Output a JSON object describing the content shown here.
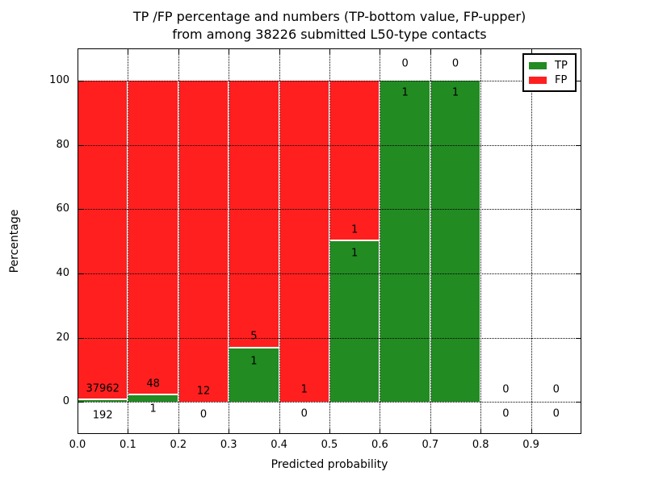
{
  "chart_data": {
    "type": "bar",
    "stacked": true,
    "units": "percent",
    "title": "TP /FP percentage and numbers (TP-bottom value, FP-upper)\nfrom among 38226 submitted L50-type contacts",
    "xlabel": "Predicted probability",
    "ylabel": "Percentage",
    "xlim": [
      0.0,
      1.0
    ],
    "ylim": [
      -10,
      110
    ],
    "xticks": [
      "0.0",
      "0.1",
      "0.2",
      "0.3",
      "0.4",
      "0.5",
      "0.6",
      "0.7",
      "0.8",
      "0.9"
    ],
    "yticks": [
      "0",
      "20",
      "40",
      "60",
      "80",
      "100"
    ],
    "grid": "dotted, drawn over bars",
    "legend_position": "upper-right",
    "total_submitted": 38226,
    "colors": {
      "tp": "#228b22",
      "fp": "#ff1f1f",
      "text": "#000000",
      "background": "#ffffff"
    },
    "legend": [
      {
        "label": "TP",
        "color_key": "tp"
      },
      {
        "label": "FP",
        "color_key": "fp"
      }
    ],
    "label_convention": "TP count below green top, FP count above green top",
    "bars": [
      {
        "bin": "0.0-0.1",
        "x0": 0.0,
        "x1": 0.1,
        "tp_count": 192,
        "fp_count": 37962,
        "tp_pct": 0.5,
        "fp_pct": 99.5,
        "fp_label_y": 4.0,
        "tp_label_y": -4.3
      },
      {
        "bin": "0.1-0.2",
        "x0": 0.1,
        "x1": 0.2,
        "tp_count": 1,
        "fp_count": 48,
        "tp_pct": 2.0,
        "fp_pct": 98.0,
        "fp_label_y": 5.5,
        "tp_label_y": -2.2
      },
      {
        "bin": "0.2-0.3",
        "x0": 0.2,
        "x1": 0.3,
        "tp_count": 0,
        "fp_count": 12,
        "tp_pct": 0,
        "fp_pct": 100,
        "fp_label_y": 3.4,
        "tp_label_y": -4.0
      },
      {
        "bin": "0.3-0.4",
        "x0": 0.3,
        "x1": 0.4,
        "tp_count": 1,
        "fp_count": 5,
        "tp_pct": 16.7,
        "fp_pct": 83.3,
        "fp_label_y": 20.4,
        "tp_label_y": 12.6
      },
      {
        "bin": "0.4-0.5",
        "x0": 0.4,
        "x1": 0.5,
        "tp_count": 0,
        "fp_count": 1,
        "tp_pct": 0,
        "fp_pct": 100,
        "fp_label_y": 3.8,
        "tp_label_y": -3.8
      },
      {
        "bin": "0.5-0.6",
        "x0": 0.5,
        "x1": 0.6,
        "tp_count": 1,
        "fp_count": 1,
        "tp_pct": 50,
        "fp_pct": 50,
        "fp_label_y": 53.5,
        "tp_label_y": 46.3
      },
      {
        "bin": "0.6-0.7",
        "x0": 0.6,
        "x1": 0.7,
        "tp_count": 1,
        "fp_count": 0,
        "tp_pct": 100,
        "fp_pct": 0,
        "fp_label_y": 105.3,
        "tp_label_y": 96.2
      },
      {
        "bin": "0.7-0.8",
        "x0": 0.7,
        "x1": 0.8,
        "tp_count": 1,
        "fp_count": 0,
        "tp_pct": 100,
        "fp_pct": 0,
        "fp_label_y": 105.3,
        "tp_label_y": 96.2
      },
      {
        "bin": "0.8-0.9",
        "x0": 0.8,
        "x1": 0.9,
        "tp_count": 0,
        "fp_count": 0,
        "tp_pct": 0,
        "fp_pct": 0,
        "fp_label_y": 3.8,
        "tp_label_y": -3.6
      },
      {
        "bin": "0.9-1.0",
        "x0": 0.9,
        "x1": 1.0,
        "tp_count": 0,
        "fp_count": 0,
        "tp_pct": 0,
        "fp_pct": 0,
        "fp_label_y": 3.8,
        "tp_label_y": -3.6
      }
    ]
  }
}
